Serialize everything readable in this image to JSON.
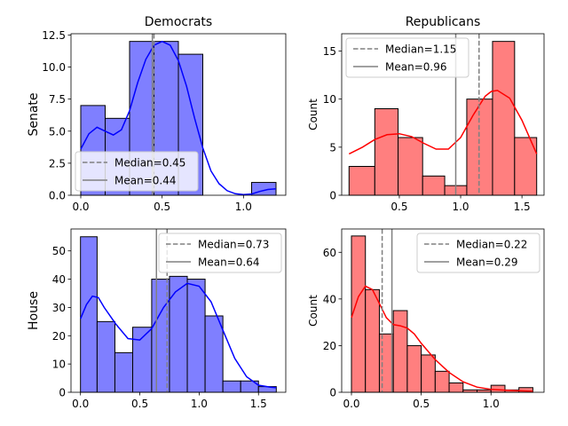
{
  "row_labels": [
    "Senate",
    "House"
  ],
  "col_titles": [
    "Democrats",
    "Republicans"
  ],
  "chart_data": [
    {
      "type": "bar",
      "title": "Democrats",
      "row_label": "Senate",
      "ylabel": "",
      "color": "#0000ff",
      "fill": "#7f7fff",
      "bins": [
        [
          0.0,
          0.15,
          7
        ],
        [
          0.15,
          0.3,
          6
        ],
        [
          0.3,
          0.45,
          12
        ],
        [
          0.45,
          0.6,
          12
        ],
        [
          0.6,
          0.75,
          11
        ],
        [
          1.05,
          1.2,
          1
        ]
      ],
      "xlim": [
        -0.06,
        1.26
      ],
      "ylim": [
        0,
        12.6
      ],
      "xticks": [
        0.0,
        0.5,
        1.0
      ],
      "xtick_labels": [
        "0.0",
        "0.5",
        "1.0"
      ],
      "yticks": [
        0,
        2.5,
        5,
        7.5,
        10,
        12.5
      ],
      "ytick_labels": [
        "0.0",
        "2.5",
        "5.0",
        "7.5",
        "10.0",
        "12.5"
      ],
      "kde": [
        [
          0,
          3.6
        ],
        [
          0.05,
          4.8
        ],
        [
          0.1,
          5.3
        ],
        [
          0.15,
          5.0
        ],
        [
          0.2,
          4.7
        ],
        [
          0.25,
          5.1
        ],
        [
          0.3,
          6.6
        ],
        [
          0.35,
          8.8
        ],
        [
          0.4,
          10.6
        ],
        [
          0.45,
          11.7
        ],
        [
          0.5,
          12.0
        ],
        [
          0.55,
          11.7
        ],
        [
          0.6,
          10.5
        ],
        [
          0.65,
          8.5
        ],
        [
          0.7,
          6.0
        ],
        [
          0.75,
          3.7
        ],
        [
          0.8,
          1.9
        ],
        [
          0.85,
          0.9
        ],
        [
          0.9,
          0.35
        ],
        [
          0.95,
          0.12
        ],
        [
          1.0,
          0.05
        ],
        [
          1.05,
          0.1
        ],
        [
          1.1,
          0.3
        ],
        [
          1.15,
          0.45
        ],
        [
          1.2,
          0.5
        ]
      ],
      "median": 0.45,
      "mean": 0.44,
      "legend": {
        "position": "lower-left",
        "median_label": "Median=0.45",
        "mean_label": "Mean=0.44"
      }
    },
    {
      "type": "bar",
      "title": "Republicans",
      "row_label": "Senate",
      "ylabel": "Count",
      "color": "#ff0000",
      "fill": "#ff7f7f",
      "bins": [
        [
          0.09,
          0.3,
          3
        ],
        [
          0.3,
          0.49,
          9
        ],
        [
          0.49,
          0.69,
          6
        ],
        [
          0.69,
          0.87,
          2
        ],
        [
          0.87,
          1.05,
          1
        ],
        [
          1.05,
          1.26,
          10
        ],
        [
          1.26,
          1.44,
          16
        ],
        [
          1.44,
          1.62,
          6
        ]
      ],
      "xlim": [
        0.03,
        1.68
      ],
      "ylim": [
        0,
        16.8
      ],
      "xticks": [
        0.5,
        1.0,
        1.5
      ],
      "xtick_labels": [
        "0.5",
        "1.0",
        "1.5"
      ],
      "yticks": [
        0,
        5,
        10,
        15
      ],
      "ytick_labels": [
        "0",
        "5",
        "10",
        "15"
      ],
      "kde": [
        [
          0.09,
          4.3
        ],
        [
          0.2,
          5.0
        ],
        [
          0.3,
          5.8
        ],
        [
          0.4,
          6.3
        ],
        [
          0.5,
          6.4
        ],
        [
          0.6,
          6.1
        ],
        [
          0.7,
          5.4
        ],
        [
          0.8,
          4.8
        ],
        [
          0.9,
          4.8
        ],
        [
          1.0,
          6.0
        ],
        [
          1.1,
          8.3
        ],
        [
          1.2,
          10.3
        ],
        [
          1.25,
          10.8
        ],
        [
          1.3,
          10.9
        ],
        [
          1.4,
          10.1
        ],
        [
          1.5,
          7.8
        ],
        [
          1.62,
          4.3
        ]
      ],
      "median": 1.15,
      "mean": 0.96,
      "legend": {
        "position": "top-left",
        "median_label": "Median=1.15",
        "mean_label": "Mean=0.96"
      }
    },
    {
      "type": "bar",
      "title": "",
      "row_label": "House",
      "ylabel": "",
      "color": "#0000ff",
      "fill": "#7f7fff",
      "bins": [
        [
          0.0,
          0.14,
          55
        ],
        [
          0.14,
          0.29,
          25
        ],
        [
          0.29,
          0.44,
          14
        ],
        [
          0.44,
          0.6,
          23
        ],
        [
          0.6,
          0.75,
          40
        ],
        [
          0.75,
          0.9,
          41
        ],
        [
          0.9,
          1.05,
          40
        ],
        [
          1.05,
          1.2,
          27
        ],
        [
          1.2,
          1.35,
          4
        ],
        [
          1.35,
          1.5,
          4
        ],
        [
          1.5,
          1.65,
          2
        ]
      ],
      "xlim": [
        -0.08,
        1.73
      ],
      "ylim": [
        0,
        57.75
      ],
      "xticks": [
        0.0,
        0.5,
        1.0,
        1.5
      ],
      "xtick_labels": [
        "0.0",
        "0.5",
        "1.0",
        "1.5"
      ],
      "yticks": [
        0,
        10,
        20,
        30,
        40,
        50
      ],
      "ytick_labels": [
        "0",
        "10",
        "20",
        "30",
        "40",
        "50"
      ],
      "kde": [
        [
          0,
          26
        ],
        [
          0.05,
          31
        ],
        [
          0.1,
          34
        ],
        [
          0.15,
          33.5
        ],
        [
          0.2,
          30
        ],
        [
          0.3,
          24
        ],
        [
          0.4,
          19
        ],
        [
          0.5,
          18.5
        ],
        [
          0.6,
          22.5
        ],
        [
          0.7,
          30
        ],
        [
          0.8,
          35.5
        ],
        [
          0.9,
          38.5
        ],
        [
          1.0,
          37.5
        ],
        [
          1.1,
          32
        ],
        [
          1.2,
          22
        ],
        [
          1.3,
          12
        ],
        [
          1.4,
          5.5
        ],
        [
          1.5,
          2.5
        ],
        [
          1.6,
          1.8
        ],
        [
          1.65,
          1.6
        ]
      ],
      "median": 0.73,
      "mean": 0.64,
      "legend": {
        "position": "top-right",
        "median_label": "Median=0.73",
        "mean_label": "Mean=0.64"
      }
    },
    {
      "type": "bar",
      "title": "",
      "row_label": "House",
      "ylabel": "Count",
      "color": "#ff0000",
      "fill": "#ff7f7f",
      "bins": [
        [
          0.0,
          0.1,
          67
        ],
        [
          0.1,
          0.2,
          44
        ],
        [
          0.2,
          0.3,
          25
        ],
        [
          0.3,
          0.4,
          35
        ],
        [
          0.4,
          0.5,
          20
        ],
        [
          0.5,
          0.6,
          16
        ],
        [
          0.6,
          0.7,
          9
        ],
        [
          0.7,
          0.8,
          4
        ],
        [
          0.8,
          0.9,
          1
        ],
        [
          0.9,
          1.0,
          1
        ],
        [
          1.0,
          1.1,
          3
        ],
        [
          1.1,
          1.2,
          1
        ],
        [
          1.2,
          1.3,
          2
        ]
      ],
      "xlim": [
        -0.07,
        1.38
      ],
      "ylim": [
        0,
        70
      ],
      "xticks": [
        0.0,
        0.5,
        1.0
      ],
      "xtick_labels": [
        "0.0",
        "0.5",
        "1.0"
      ],
      "yticks": [
        0,
        20,
        40,
        60
      ],
      "ytick_labels": [
        "0",
        "20",
        "40",
        "60"
      ],
      "kde": [
        [
          0,
          32
        ],
        [
          0.05,
          41
        ],
        [
          0.1,
          45.5
        ],
        [
          0.15,
          44
        ],
        [
          0.2,
          38
        ],
        [
          0.25,
          32
        ],
        [
          0.3,
          29
        ],
        [
          0.35,
          28.5
        ],
        [
          0.4,
          27.5
        ],
        [
          0.45,
          25
        ],
        [
          0.5,
          21
        ],
        [
          0.6,
          14
        ],
        [
          0.7,
          8.5
        ],
        [
          0.8,
          4.5
        ],
        [
          0.9,
          2.2
        ],
        [
          1.0,
          1.2
        ],
        [
          1.1,
          0.9
        ],
        [
          1.2,
          0.7
        ],
        [
          1.3,
          0.5
        ]
      ],
      "median": 0.22,
      "mean": 0.29,
      "legend": {
        "position": "top-right",
        "median_label": "Median=0.22",
        "mean_label": "Mean=0.29"
      }
    }
  ]
}
